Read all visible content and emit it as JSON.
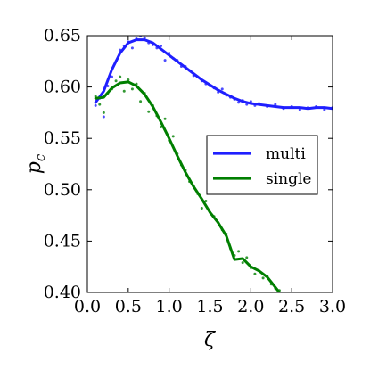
{
  "chart_data": {
    "type": "line",
    "xlabel": "ζ",
    "ylabel": "p",
    "ylabel_sub": "c",
    "xlim": [
      0.0,
      3.0
    ],
    "ylim": [
      0.4,
      0.65
    ],
    "xticks": [
      "0.0",
      "0.5",
      "1.0",
      "1.5",
      "2.0",
      "2.5",
      "3.0"
    ],
    "yticks": [
      "0.40",
      "0.45",
      "0.50",
      "0.55",
      "0.60",
      "0.65"
    ],
    "legend_position": "center-right",
    "grid": false,
    "series": [
      {
        "name": "multi",
        "color": "#1f1fff",
        "line": [
          [
            0.1,
            0.585
          ],
          [
            0.2,
            0.596
          ],
          [
            0.3,
            0.617
          ],
          [
            0.4,
            0.633
          ],
          [
            0.5,
            0.643
          ],
          [
            0.6,
            0.646
          ],
          [
            0.7,
            0.646
          ],
          [
            0.8,
            0.643
          ],
          [
            0.9,
            0.637
          ],
          [
            1.0,
            0.631
          ],
          [
            1.1,
            0.625
          ],
          [
            1.2,
            0.619
          ],
          [
            1.3,
            0.613
          ],
          [
            1.4,
            0.607
          ],
          [
            1.5,
            0.602
          ],
          [
            1.6,
            0.597
          ],
          [
            1.7,
            0.593
          ],
          [
            1.8,
            0.589
          ],
          [
            1.9,
            0.586
          ],
          [
            2.0,
            0.584
          ],
          [
            2.1,
            0.583
          ],
          [
            2.2,
            0.582
          ],
          [
            2.3,
            0.581
          ],
          [
            2.4,
            0.58
          ],
          [
            2.5,
            0.58
          ],
          [
            2.6,
            0.58
          ],
          [
            2.7,
            0.579
          ],
          [
            2.8,
            0.58
          ],
          [
            2.9,
            0.58
          ],
          [
            3.0,
            0.579
          ]
        ],
        "points": [
          [
            0.1,
            0.582
          ],
          [
            0.15,
            0.589
          ],
          [
            0.2,
            0.571
          ],
          [
            0.25,
            0.601
          ],
          [
            0.3,
            0.61
          ],
          [
            0.35,
            0.625
          ],
          [
            0.4,
            0.636
          ],
          [
            0.45,
            0.64
          ],
          [
            0.5,
            0.644
          ],
          [
            0.55,
            0.638
          ],
          [
            0.6,
            0.647
          ],
          [
            0.65,
            0.65
          ],
          [
            0.7,
            0.648
          ],
          [
            0.75,
            0.643
          ],
          [
            0.8,
            0.641
          ],
          [
            0.85,
            0.638
          ],
          [
            0.9,
            0.64
          ],
          [
            0.95,
            0.626
          ],
          [
            1.0,
            0.633
          ],
          [
            1.05,
            0.628
          ],
          [
            1.1,
            0.626
          ],
          [
            1.15,
            0.62
          ],
          [
            1.2,
            0.62
          ],
          [
            1.25,
            0.616
          ],
          [
            1.3,
            0.611
          ],
          [
            1.35,
            0.61
          ],
          [
            1.4,
            0.606
          ],
          [
            1.45,
            0.603
          ],
          [
            1.5,
            0.601
          ],
          [
            1.55,
            0.599
          ],
          [
            1.6,
            0.595
          ],
          [
            1.65,
            0.598
          ],
          [
            1.7,
            0.592
          ],
          [
            1.75,
            0.59
          ],
          [
            1.8,
            0.588
          ],
          [
            1.85,
            0.585
          ],
          [
            1.9,
            0.587
          ],
          [
            1.95,
            0.583
          ],
          [
            2.0,
            0.586
          ],
          [
            2.05,
            0.582
          ],
          [
            2.1,
            0.584
          ],
          [
            2.2,
            0.581
          ],
          [
            2.3,
            0.583
          ],
          [
            2.4,
            0.579
          ],
          [
            2.5,
            0.581
          ],
          [
            2.6,
            0.578
          ],
          [
            2.7,
            0.58
          ],
          [
            2.8,
            0.581
          ],
          [
            2.9,
            0.578
          ],
          [
            3.0,
            0.58
          ]
        ]
      },
      {
        "name": "single",
        "color": "#007f00",
        "line": [
          [
            0.1,
            0.589
          ],
          [
            0.2,
            0.59
          ],
          [
            0.3,
            0.599
          ],
          [
            0.4,
            0.604
          ],
          [
            0.5,
            0.605
          ],
          [
            0.6,
            0.601
          ],
          [
            0.7,
            0.593
          ],
          [
            0.8,
            0.581
          ],
          [
            0.9,
            0.566
          ],
          [
            1.0,
            0.55
          ],
          [
            1.1,
            0.533
          ],
          [
            1.2,
            0.517
          ],
          [
            1.3,
            0.503
          ],
          [
            1.4,
            0.491
          ],
          [
            1.5,
            0.478
          ],
          [
            1.6,
            0.468
          ],
          [
            1.7,
            0.455
          ],
          [
            1.8,
            0.432
          ],
          [
            1.9,
            0.433
          ],
          [
            2.0,
            0.425
          ],
          [
            2.1,
            0.421
          ],
          [
            2.2,
            0.415
          ],
          [
            2.3,
            0.405
          ],
          [
            2.35,
            0.4
          ]
        ],
        "points": [
          [
            0.1,
            0.591
          ],
          [
            0.15,
            0.583
          ],
          [
            0.2,
            0.575
          ],
          [
            0.25,
            0.594
          ],
          [
            0.3,
            0.598
          ],
          [
            0.35,
            0.606
          ],
          [
            0.4,
            0.61
          ],
          [
            0.45,
            0.596
          ],
          [
            0.5,
            0.607
          ],
          [
            0.55,
            0.598
          ],
          [
            0.6,
            0.603
          ],
          [
            0.65,
            0.586
          ],
          [
            0.7,
            0.594
          ],
          [
            0.75,
            0.576
          ],
          [
            0.8,
            0.582
          ],
          [
            0.85,
            0.572
          ],
          [
            0.9,
            0.561
          ],
          [
            0.95,
            0.569
          ],
          [
            1.0,
            0.548
          ],
          [
            1.05,
            0.552
          ],
          [
            1.1,
            0.535
          ],
          [
            1.15,
            0.524
          ],
          [
            1.2,
            0.519
          ],
          [
            1.25,
            0.508
          ],
          [
            1.3,
            0.504
          ],
          [
            1.35,
            0.496
          ],
          [
            1.4,
            0.482
          ],
          [
            1.45,
            0.489
          ],
          [
            1.5,
            0.478
          ],
          [
            1.55,
            0.474
          ],
          [
            1.6,
            0.468
          ],
          [
            1.65,
            0.461
          ],
          [
            1.7,
            0.457
          ],
          [
            1.75,
            0.443
          ],
          [
            1.8,
            0.436
          ],
          [
            1.85,
            0.44
          ],
          [
            1.9,
            0.429
          ],
          [
            1.95,
            0.434
          ],
          [
            2.0,
            0.424
          ],
          [
            2.05,
            0.418
          ],
          [
            2.1,
            0.421
          ],
          [
            2.15,
            0.414
          ],
          [
            2.2,
            0.416
          ],
          [
            2.25,
            0.408
          ],
          [
            2.3,
            0.404
          ],
          [
            2.35,
            0.402
          ]
        ]
      }
    ]
  }
}
